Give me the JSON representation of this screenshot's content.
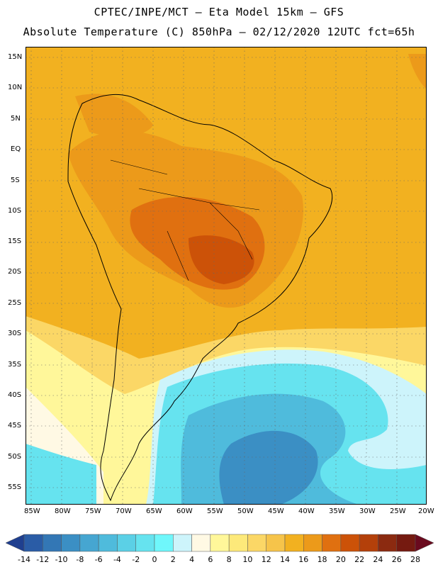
{
  "header": {
    "line1": "CPTEC/INPE/MCT –  Eta Model 15km – GFS",
    "line2": "Absolute Temperature (C) 850hPa – 02/12/2020 12UTC fct=65h"
  },
  "map": {
    "variable": "Absolute Temperature (C) 850hPa",
    "lon_range": [
      -85,
      -20
    ],
    "lat_range": [
      -58,
      16
    ],
    "lat_labels": [
      "15N",
      "10N",
      "5N",
      "EQ",
      "5S",
      "10S",
      "15S",
      "20S",
      "25S",
      "30S",
      "35S",
      "40S",
      "45S",
      "50S",
      "55S"
    ],
    "lon_labels": [
      "85W",
      "80W",
      "75W",
      "70W",
      "65W",
      "60W",
      "55W",
      "50W",
      "45W",
      "40W",
      "35W",
      "30W",
      "25W",
      "20W"
    ]
  },
  "colorbar": {
    "labels": [
      "-14",
      "-12",
      "-10",
      "-8",
      "-6",
      "-4",
      "-2",
      "0",
      "2",
      "4",
      "6",
      "8",
      "10",
      "12",
      "14",
      "16",
      "18",
      "20",
      "22",
      "24",
      "26",
      "28"
    ],
    "colors": [
      "#1f3f8f",
      "#2a5ca6",
      "#3377b5",
      "#3b8fc4",
      "#46a6d1",
      "#4fbbdc",
      "#5bd0e6",
      "#66e3ef",
      "#6ff7fb",
      "#cdf4fb",
      "#fff9e4",
      "#fff79a",
      "#fde97a",
      "#fbd766",
      "#f6c44a",
      "#f2b120",
      "#ec9a1a",
      "#e07010",
      "#cc5208",
      "#b4400a",
      "#8b2a10",
      "#751a10",
      "#6a0a1e"
    ]
  }
}
